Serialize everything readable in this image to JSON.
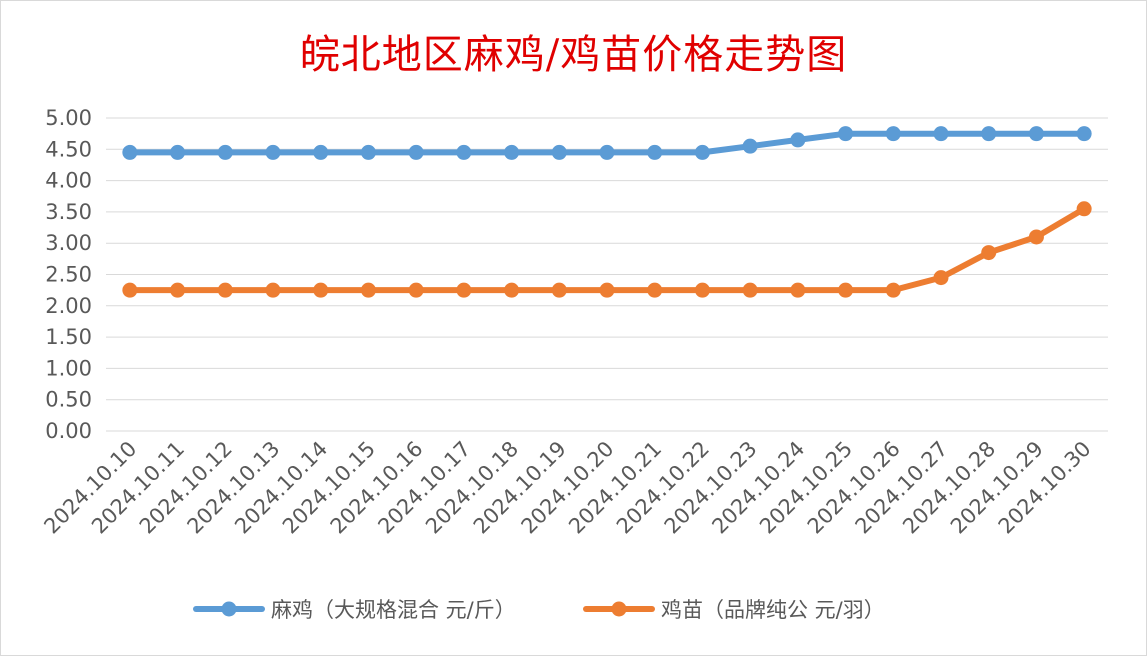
{
  "chart_data": {
    "type": "line",
    "title": "皖北地区麻鸡/鸡苗价格走势图",
    "categories": [
      "2024.10.10",
      "2024.10.11",
      "2024.10.12",
      "2024.10.13",
      "2024.10.14",
      "2024.10.15",
      "2024.10.16",
      "2024.10.17",
      "2024.10.18",
      "2024.10.19",
      "2024.10.20",
      "2024.10.21",
      "2024.10.22",
      "2024.10.23",
      "2024.10.24",
      "2024.10.25",
      "2024.10.26",
      "2024.10.27",
      "2024.10.28",
      "2024.10.29",
      "2024.10.30"
    ],
    "yticks": [
      "5.00",
      "4.50",
      "4.00",
      "3.50",
      "3.00",
      "2.50",
      "2.00",
      "1.50",
      "1.00",
      "0.50",
      "0.00"
    ],
    "ylim": [
      0,
      5
    ],
    "grid": true,
    "legend_position": "bottom",
    "series": [
      {
        "name": "麻鸡（大规格混合 元/斤）",
        "color": "#5b9bd5",
        "values": [
          4.45,
          4.45,
          4.45,
          4.45,
          4.45,
          4.45,
          4.45,
          4.45,
          4.45,
          4.45,
          4.45,
          4.45,
          4.45,
          4.55,
          4.65,
          4.75,
          4.75,
          4.75,
          4.75,
          4.75,
          4.75
        ]
      },
      {
        "name": "鸡苗（品牌纯公 元/羽）",
        "color": "#ed7d31",
        "values": [
          2.25,
          2.25,
          2.25,
          2.25,
          2.25,
          2.25,
          2.25,
          2.25,
          2.25,
          2.25,
          2.25,
          2.25,
          2.25,
          2.25,
          2.25,
          2.25,
          2.25,
          2.45,
          2.85,
          3.1,
          3.55
        ]
      }
    ]
  }
}
